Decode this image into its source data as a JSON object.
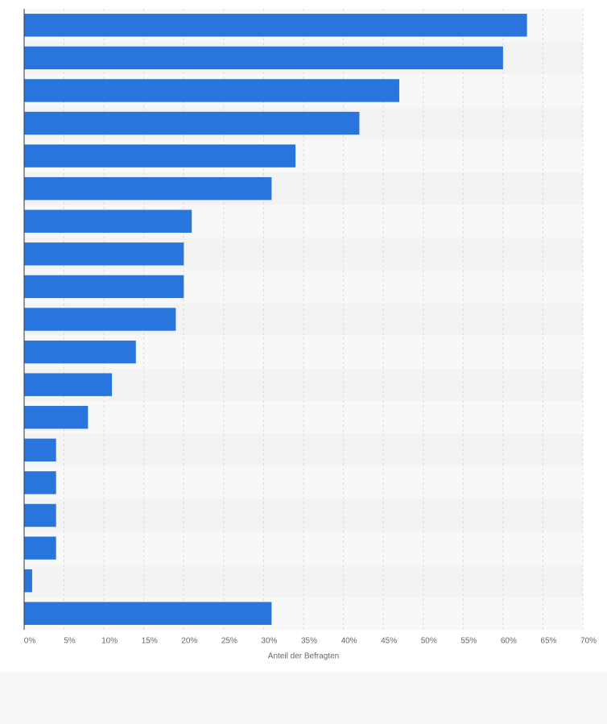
{
  "chart_data": {
    "type": "bar",
    "orientation": "horizontal",
    "categories": [
      null,
      null,
      null,
      null,
      null,
      null,
      null,
      null,
      null,
      null,
      null,
      null,
      null,
      null,
      null,
      null,
      null,
      null,
      null
    ],
    "values": [
      63,
      60,
      47,
      42,
      34,
      31,
      21,
      20,
      20,
      19,
      14,
      11,
      8,
      4,
      4,
      4,
      4,
      1,
      31
    ],
    "color": "#2876dd",
    "xlabel": "Anteil der Befragten",
    "xlim": [
      0,
      70
    ],
    "xticks": [
      {
        "value": 0,
        "label": "0%"
      },
      {
        "value": 5,
        "label": "5%"
      },
      {
        "value": 10,
        "label": "10%"
      },
      {
        "value": 15,
        "label": "15%"
      },
      {
        "value": 20,
        "label": "20%"
      },
      {
        "value": 25,
        "label": "25%"
      },
      {
        "value": 30,
        "label": "30%"
      },
      {
        "value": 35,
        "label": "35%"
      },
      {
        "value": 40,
        "label": "40%"
      },
      {
        "value": 45,
        "label": "45%"
      },
      {
        "value": 50,
        "label": "50%"
      },
      {
        "value": 55,
        "label": "55%"
      },
      {
        "value": 60,
        "label": "60%"
      },
      {
        "value": 65,
        "label": "65%"
      },
      {
        "value": 70,
        "label": "70%"
      }
    ],
    "grid": true
  }
}
